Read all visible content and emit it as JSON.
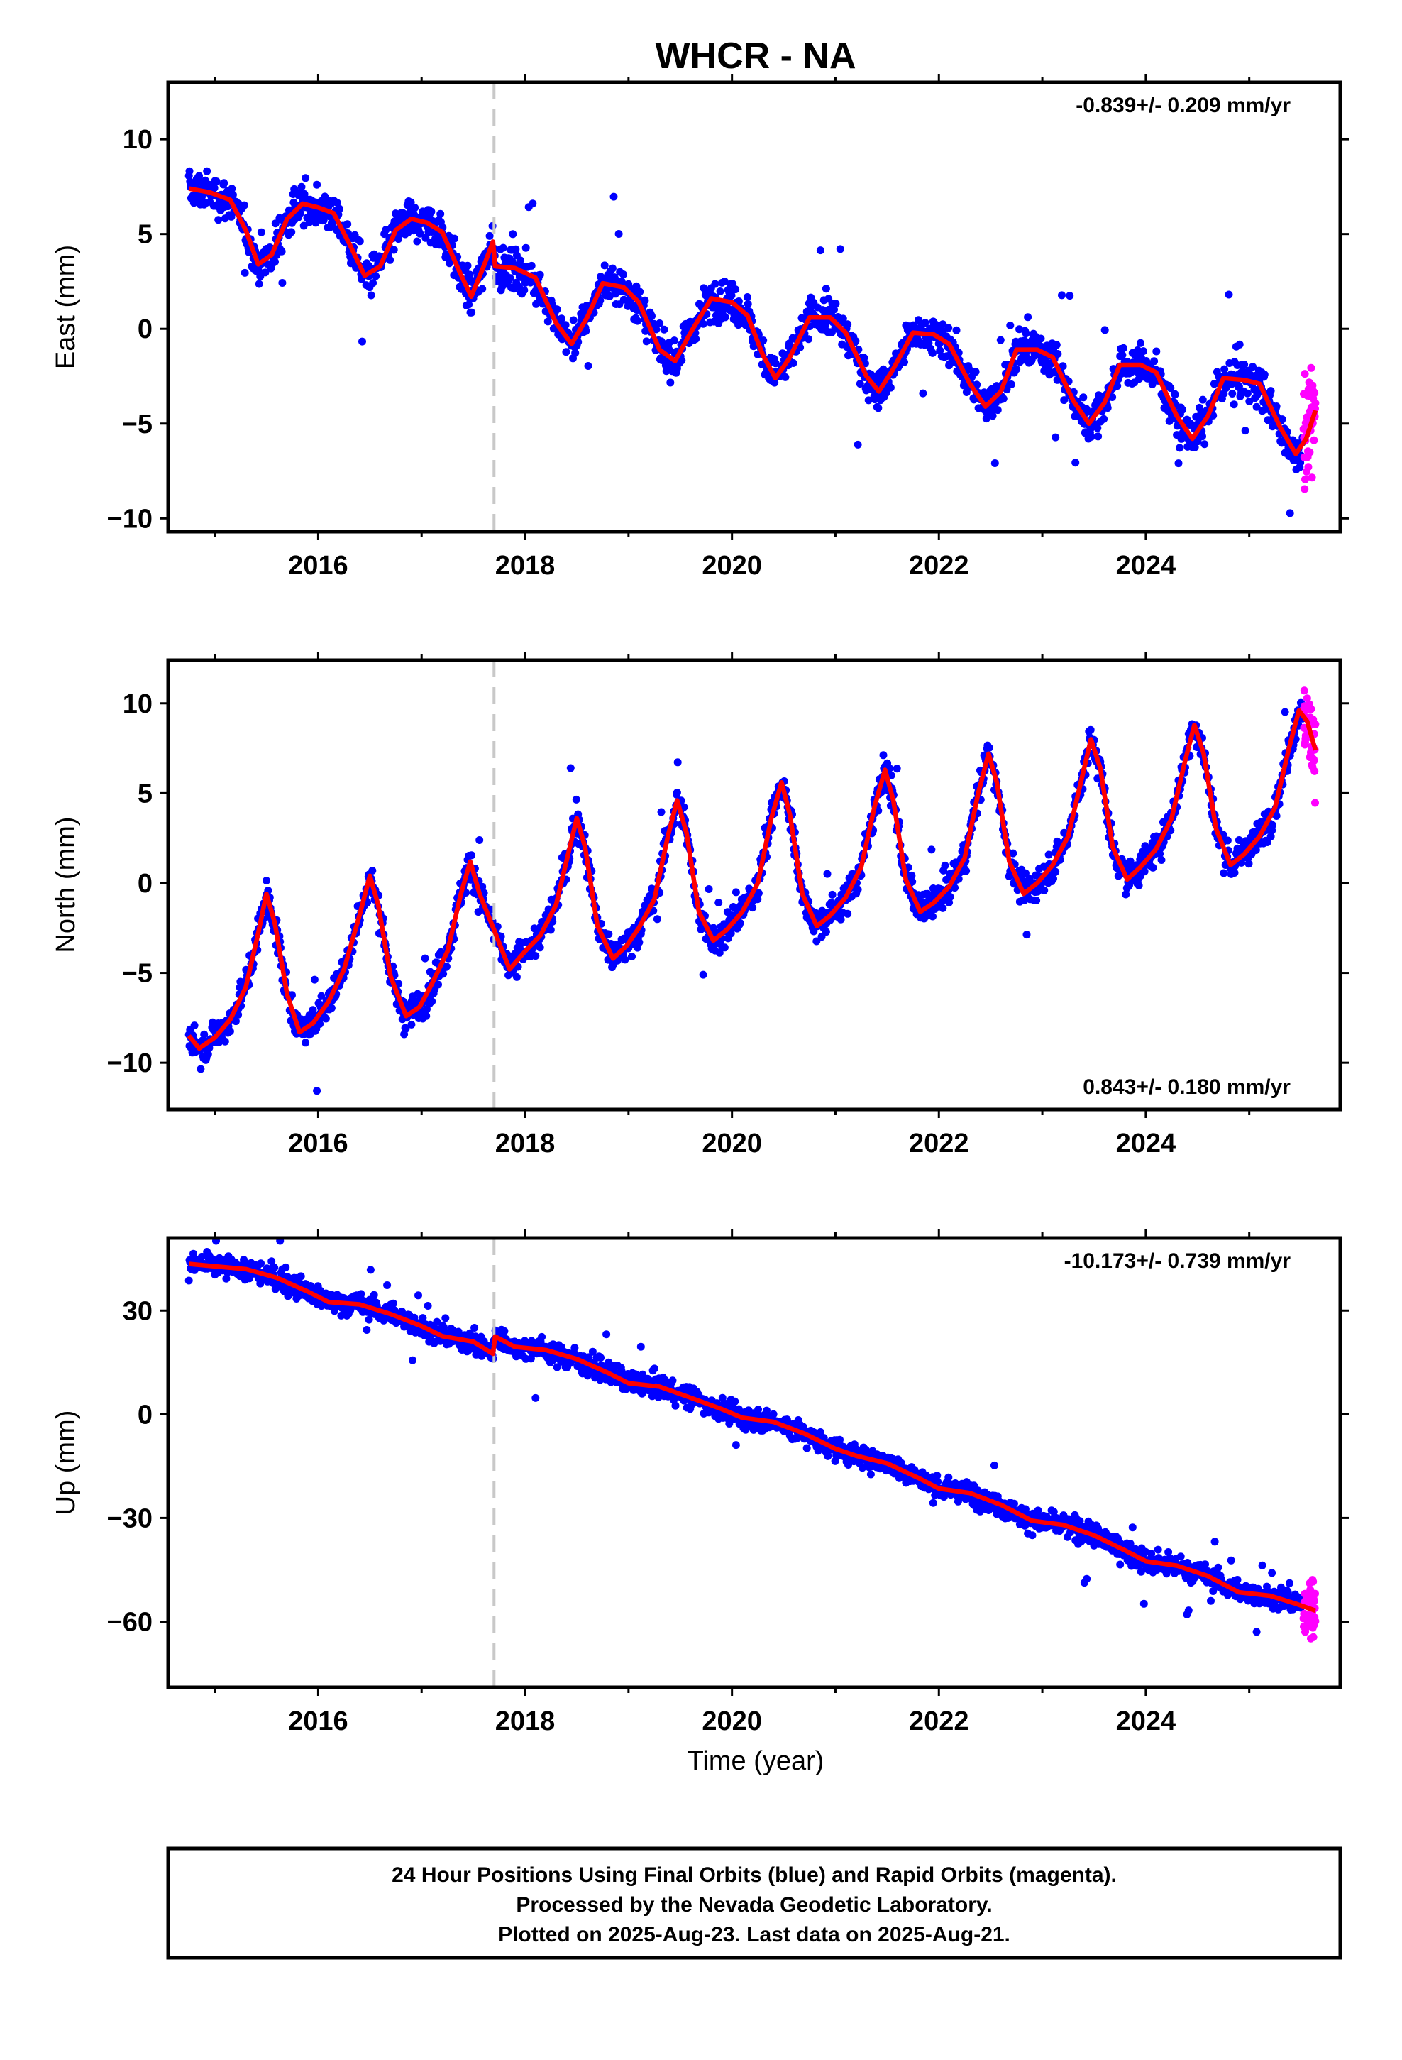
{
  "title": "WHCR - NA",
  "xlabel": "Time (year)",
  "x_ticks": [
    "2016",
    "2018",
    "2020",
    "2022",
    "2024"
  ],
  "colors": {
    "final_orbits": "#0000ff",
    "rapid_orbits": "#ff00ff",
    "model": "#ff0000",
    "event_line": "#c8c8c8",
    "frame": "#000000"
  },
  "footer": {
    "line1": "24 Hour Positions Using Final Orbits (blue) and Rapid Orbits (magenta).",
    "line2": "Processed by the Nevada Geodetic Laboratory.",
    "line3": "Plotted on 2025-Aug-23. Last data on 2025-Aug-21."
  },
  "chart_data": [
    {
      "type": "scatter",
      "ylabel": "East (mm)",
      "rate_label": "-0.839+/- 0.209 mm/yr",
      "rate_position": "top-right",
      "xlim": [
        2014.55,
        2025.88
      ],
      "ylim": [
        -10.7,
        13.0
      ],
      "y_ticks": [
        -10,
        -5,
        0,
        5,
        10
      ],
      "event_line_x": 2017.7,
      "data_start": 2014.75,
      "final_end": 2025.52,
      "rapid_end": 2025.64,
      "model_points": [
        [
          2014.75,
          7.4
        ],
        [
          2014.95,
          7.2
        ],
        [
          2015.15,
          6.8
        ],
        [
          2015.3,
          5.2
        ],
        [
          2015.42,
          3.4
        ],
        [
          2015.55,
          3.9
        ],
        [
          2015.7,
          5.8
        ],
        [
          2015.85,
          6.6
        ],
        [
          2016.0,
          6.4
        ],
        [
          2016.15,
          6.1
        ],
        [
          2016.3,
          4.5
        ],
        [
          2016.45,
          2.8
        ],
        [
          2016.6,
          3.3
        ],
        [
          2016.75,
          5.2
        ],
        [
          2016.9,
          5.8
        ],
        [
          2017.05,
          5.6
        ],
        [
          2017.2,
          5.1
        ],
        [
          2017.35,
          3.2
        ],
        [
          2017.48,
          1.7
        ],
        [
          2017.6,
          3.3
        ],
        [
          2017.69,
          4.6
        ],
        [
          2017.71,
          3.3
        ],
        [
          2017.9,
          3.2
        ],
        [
          2018.1,
          2.7
        ],
        [
          2018.3,
          0.3
        ],
        [
          2018.45,
          -0.8
        ],
        [
          2018.6,
          0.6
        ],
        [
          2018.75,
          2.4
        ],
        [
          2018.95,
          2.2
        ],
        [
          2019.1,
          1.4
        ],
        [
          2019.3,
          -1.1
        ],
        [
          2019.45,
          -1.7
        ],
        [
          2019.6,
          -0.2
        ],
        [
          2019.8,
          1.6
        ],
        [
          2020.0,
          1.4
        ],
        [
          2020.15,
          0.7
        ],
        [
          2020.3,
          -1.4
        ],
        [
          2020.42,
          -2.6
        ],
        [
          2020.55,
          -1.6
        ],
        [
          2020.75,
          0.6
        ],
        [
          2020.95,
          0.6
        ],
        [
          2021.1,
          -0.2
        ],
        [
          2021.3,
          -2.5
        ],
        [
          2021.42,
          -3.3
        ],
        [
          2021.55,
          -2.2
        ],
        [
          2021.75,
          -0.2
        ],
        [
          2021.95,
          -0.3
        ],
        [
          2022.1,
          -0.8
        ],
        [
          2022.3,
          -2.9
        ],
        [
          2022.45,
          -4.1
        ],
        [
          2022.6,
          -3.3
        ],
        [
          2022.75,
          -1.1
        ],
        [
          2022.95,
          -1.1
        ],
        [
          2023.1,
          -1.5
        ],
        [
          2023.3,
          -3.8
        ],
        [
          2023.45,
          -5.0
        ],
        [
          2023.6,
          -3.9
        ],
        [
          2023.75,
          -1.9
        ],
        [
          2023.95,
          -1.9
        ],
        [
          2024.1,
          -2.3
        ],
        [
          2024.3,
          -4.6
        ],
        [
          2024.45,
          -5.8
        ],
        [
          2024.6,
          -4.6
        ],
        [
          2024.75,
          -2.6
        ],
        [
          2024.95,
          -2.7
        ],
        [
          2025.1,
          -2.9
        ],
        [
          2025.3,
          -5.2
        ],
        [
          2025.45,
          -6.6
        ],
        [
          2025.55,
          -5.8
        ],
        [
          2025.64,
          -4.3
        ]
      ]
    },
    {
      "type": "scatter",
      "ylabel": "North (mm)",
      "rate_label": "0.843+/- 0.180 mm/yr",
      "rate_position": "bottom-right",
      "xlim": [
        2014.55,
        2025.88
      ],
      "ylim": [
        -12.6,
        12.4
      ],
      "y_ticks": [
        -10,
        -5,
        0,
        5,
        10
      ],
      "event_line_x": 2017.7,
      "data_start": 2014.75,
      "final_end": 2025.52,
      "rapid_end": 2025.64,
      "model_points": [
        [
          2014.75,
          -8.5
        ],
        [
          2014.85,
          -9.2
        ],
        [
          2015.0,
          -8.6
        ],
        [
          2015.15,
          -7.6
        ],
        [
          2015.3,
          -5.8
        ],
        [
          2015.42,
          -2.8
        ],
        [
          2015.5,
          -0.6
        ],
        [
          2015.58,
          -2.2
        ],
        [
          2015.7,
          -6.2
        ],
        [
          2015.82,
          -8.3
        ],
        [
          2015.95,
          -7.8
        ],
        [
          2016.1,
          -6.6
        ],
        [
          2016.25,
          -4.8
        ],
        [
          2016.4,
          -1.8
        ],
        [
          2016.5,
          0.4
        ],
        [
          2016.58,
          -1.2
        ],
        [
          2016.7,
          -5.2
        ],
        [
          2016.85,
          -7.4
        ],
        [
          2016.98,
          -6.9
        ],
        [
          2017.1,
          -5.6
        ],
        [
          2017.25,
          -3.8
        ],
        [
          2017.38,
          -0.6
        ],
        [
          2017.47,
          1.2
        ],
        [
          2017.56,
          -0.6
        ],
        [
          2017.7,
          -2.6
        ],
        [
          2017.85,
          -4.8
        ],
        [
          2018.0,
          -3.8
        ],
        [
          2018.15,
          -2.9
        ],
        [
          2018.3,
          -1.2
        ],
        [
          2018.42,
          1.7
        ],
        [
          2018.5,
          3.6
        ],
        [
          2018.58,
          2.0
        ],
        [
          2018.7,
          -2.4
        ],
        [
          2018.85,
          -4.2
        ],
        [
          2018.98,
          -3.5
        ],
        [
          2019.1,
          -2.5
        ],
        [
          2019.25,
          -0.9
        ],
        [
          2019.38,
          2.6
        ],
        [
          2019.47,
          4.6
        ],
        [
          2019.56,
          2.8
        ],
        [
          2019.68,
          -1.6
        ],
        [
          2019.82,
          -3.2
        ],
        [
          2019.95,
          -2.6
        ],
        [
          2020.1,
          -1.6
        ],
        [
          2020.25,
          0.0
        ],
        [
          2020.38,
          3.6
        ],
        [
          2020.48,
          5.6
        ],
        [
          2020.56,
          3.8
        ],
        [
          2020.68,
          -0.6
        ],
        [
          2020.82,
          -2.4
        ],
        [
          2020.95,
          -1.8
        ],
        [
          2021.1,
          -0.8
        ],
        [
          2021.25,
          0.9
        ],
        [
          2021.38,
          4.3
        ],
        [
          2021.48,
          6.3
        ],
        [
          2021.56,
          4.6
        ],
        [
          2021.68,
          0.2
        ],
        [
          2021.82,
          -1.6
        ],
        [
          2021.95,
          -1.1
        ],
        [
          2022.1,
          -0.2
        ],
        [
          2022.25,
          1.4
        ],
        [
          2022.38,
          5.0
        ],
        [
          2022.48,
          7.2
        ],
        [
          2022.56,
          5.6
        ],
        [
          2022.68,
          1.2
        ],
        [
          2022.82,
          -0.6
        ],
        [
          2022.95,
          0.0
        ],
        [
          2023.1,
          1.0
        ],
        [
          2023.25,
          2.6
        ],
        [
          2023.38,
          5.8
        ],
        [
          2023.47,
          8.0
        ],
        [
          2023.56,
          6.4
        ],
        [
          2023.68,
          2.0
        ],
        [
          2023.82,
          0.2
        ],
        [
          2023.95,
          0.9
        ],
        [
          2024.1,
          1.9
        ],
        [
          2024.25,
          3.6
        ],
        [
          2024.38,
          6.8
        ],
        [
          2024.47,
          8.8
        ],
        [
          2024.56,
          7.2
        ],
        [
          2024.68,
          3.0
        ],
        [
          2024.82,
          1.0
        ],
        [
          2024.95,
          1.6
        ],
        [
          2025.1,
          2.6
        ],
        [
          2025.25,
          4.2
        ],
        [
          2025.38,
          7.4
        ],
        [
          2025.48,
          9.6
        ],
        [
          2025.56,
          9.0
        ],
        [
          2025.64,
          7.4
        ]
      ]
    },
    {
      "type": "scatter",
      "ylabel": "Up (mm)",
      "rate_label": "-10.173+/- 0.739 mm/yr",
      "rate_position": "top-right",
      "xlim": [
        2014.55,
        2025.88
      ],
      "ylim": [
        -79,
        51
      ],
      "y_ticks": [
        -60,
        -30,
        0,
        30
      ],
      "event_line_x": 2017.7,
      "data_start": 2014.75,
      "final_end": 2025.52,
      "rapid_end": 2025.64,
      "model_points": [
        [
          2014.75,
          43.5
        ],
        [
          2015.0,
          42.8
        ],
        [
          2015.3,
          42.0
        ],
        [
          2015.6,
          39.5
        ],
        [
          2015.9,
          35.5
        ],
        [
          2016.1,
          32.5
        ],
        [
          2016.4,
          31.8
        ],
        [
          2016.7,
          29.0
        ],
        [
          2017.0,
          25.5
        ],
        [
          2017.2,
          22.6
        ],
        [
          2017.5,
          21.0
        ],
        [
          2017.69,
          17.5
        ],
        [
          2017.71,
          22.5
        ],
        [
          2017.9,
          19.5
        ],
        [
          2018.2,
          18.6
        ],
        [
          2018.5,
          16.0
        ],
        [
          2018.8,
          12.0
        ],
        [
          2019.0,
          9.0
        ],
        [
          2019.3,
          8.0
        ],
        [
          2019.6,
          4.8
        ],
        [
          2019.9,
          1.5
        ],
        [
          2020.1,
          -1.0
        ],
        [
          2020.4,
          -2.2
        ],
        [
          2020.7,
          -5.6
        ],
        [
          2021.0,
          -10.0
        ],
        [
          2021.2,
          -12.0
        ],
        [
          2021.5,
          -14.2
        ],
        [
          2021.8,
          -18.4
        ],
        [
          2022.0,
          -21.5
        ],
        [
          2022.3,
          -22.8
        ],
        [
          2022.6,
          -26.2
        ],
        [
          2022.9,
          -30.8
        ],
        [
          2023.2,
          -32.0
        ],
        [
          2023.5,
          -35.0
        ],
        [
          2023.8,
          -39.4
        ],
        [
          2024.0,
          -42.5
        ],
        [
          2024.3,
          -43.8
        ],
        [
          2024.6,
          -46.8
        ],
        [
          2024.9,
          -51.5
        ],
        [
          2025.2,
          -52.5
        ],
        [
          2025.45,
          -54.8
        ],
        [
          2025.64,
          -56.8
        ]
      ]
    }
  ]
}
